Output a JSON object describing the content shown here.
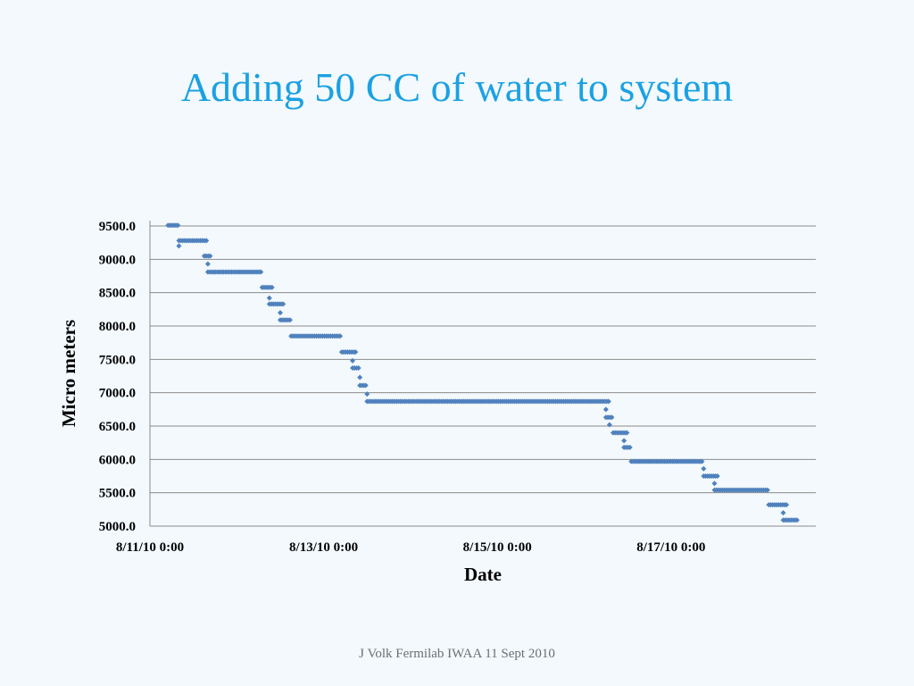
{
  "slide": {
    "title": "Adding 50 CC of water to system",
    "footer": "J Volk Fermilab IWAA 11 Sept 2010"
  },
  "chart_data": {
    "type": "scatter",
    "xlabel": "Date",
    "ylabel": "Micro meters",
    "x_unit": "days",
    "x_tick_labels": [
      "8/11/10 0:00",
      "8/13/10 0:00",
      "8/15/10 0:00",
      "8/17/10 0:00"
    ],
    "y_tick_labels": [
      "5000.0",
      "5500.0",
      "6000.0",
      "6500.0",
      "7000.0",
      "7500.0",
      "8000.0",
      "8500.0",
      "9000.0",
      "9500.0"
    ],
    "xlim": [
      "8/11/10 0:00",
      "8/18/10 16:00"
    ],
    "ylim": [
      5000,
      9500
    ],
    "grid": "horizontal",
    "legend": "none",
    "marker_color": "#4f81bd",
    "grid_color": "#8c8c8c",
    "series": [
      {
        "segments": [
          {
            "x_start": "8/11/10 5:00",
            "x_end": "8/11/10 8:00",
            "y": 9510
          },
          {
            "x_start": "8/11/10 8:00",
            "x_end": "8/11/10 16:00",
            "y": 9280
          },
          {
            "x_start": "8/11/10 15:00",
            "x_end": "8/11/10 17:00",
            "y": 9050
          },
          {
            "x_start": "8/11/10 16:00",
            "x_end": "8/12/10 7:00",
            "y": 8810
          },
          {
            "x_start": "8/12/10 7:00",
            "x_end": "8/12/10 10:00",
            "y": 8580
          },
          {
            "x_start": "8/12/10 9:00",
            "x_end": "8/12/10 13:00",
            "y": 8330
          },
          {
            "x_start": "8/12/10 12:00",
            "x_end": "8/12/10 15:00",
            "y": 8090
          },
          {
            "x_start": "8/12/10 15:00",
            "x_end": "8/13/10 5:00",
            "y": 7850
          },
          {
            "x_start": "8/13/10 5:00",
            "x_end": "8/13/10 9:00",
            "y": 7610
          },
          {
            "x_start": "8/13/10 8:00",
            "x_end": "8/13/10 10:00",
            "y": 7370
          },
          {
            "x_start": "8/13/10 10:00",
            "x_end": "8/13/10 12:00",
            "y": 7110
          },
          {
            "x_start": "8/13/10 12:00",
            "x_end": "8/16/10 7:00",
            "y": 6870
          },
          {
            "x_start": "8/16/10 6:00",
            "x_end": "8/16/10 8:00",
            "y": 6630
          },
          {
            "x_start": "8/16/10 8:00",
            "x_end": "8/16/10 12:00",
            "y": 6400
          },
          {
            "x_start": "8/16/10 11:00",
            "x_end": "8/16/10 13:00",
            "y": 6180
          },
          {
            "x_start": "8/16/10 13:00",
            "x_end": "8/17/10 9:00",
            "y": 5970
          },
          {
            "x_start": "8/17/10 9:00",
            "x_end": "8/17/10 13:00",
            "y": 5750
          },
          {
            "x_start": "8/17/10 12:00",
            "x_end": "8/18/10 3:00",
            "y": 5540
          },
          {
            "x_start": "8/18/10 3:00",
            "x_end": "8/18/10 8:00",
            "y": 5320
          },
          {
            "x_start": "8/18/10 7:00",
            "x_end": "8/18/10 11:00",
            "y": 5090
          }
        ],
        "transitions": [
          {
            "x": "8/11/10 8:00",
            "y": 9200
          },
          {
            "x": "8/11/10 16:00",
            "y": 8930
          },
          {
            "x": "8/12/10 9:00",
            "y": 8420
          },
          {
            "x": "8/12/10 12:00",
            "y": 8200
          },
          {
            "x": "8/13/10 8:00",
            "y": 7480
          },
          {
            "x": "8/13/10 10:00",
            "y": 7230
          },
          {
            "x": "8/13/10 12:00",
            "y": 6980
          },
          {
            "x": "8/16/10 6:00",
            "y": 6750
          },
          {
            "x": "8/16/10 7:00",
            "y": 6520
          },
          {
            "x": "8/16/10 11:00",
            "y": 6280
          },
          {
            "x": "8/17/10 9:00",
            "y": 5860
          },
          {
            "x": "8/17/10 12:00",
            "y": 5640
          },
          {
            "x": "8/18/10 7:00",
            "y": 5200
          }
        ]
      }
    ]
  }
}
